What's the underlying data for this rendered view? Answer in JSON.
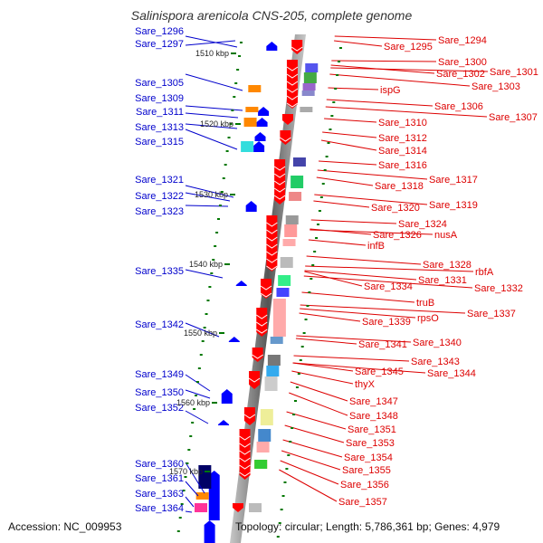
{
  "title": "Salinispora arenicola CNS-205, complete genome",
  "footer": {
    "accession": "Accession: NC_009953",
    "topology": "Topology: circular; Length: 5,786,361 bp; Genes: 4,979"
  },
  "colors": {
    "left_label": "#0000cc",
    "right_label": "#dd0000",
    "forward_gene": "#0000ff",
    "reverse_gene": "#ff0000",
    "tick": "#007700"
  },
  "scale_labels": [
    "1510 kbp",
    "1520 kbp",
    "1530 kbp",
    "1540 kbp",
    "1550 kbp",
    "1560 kbp",
    "1570 kbp"
  ],
  "left_labels": [
    "Sare_1296",
    "Sare_1297",
    "Sare_1305",
    "Sare_1309",
    "Sare_1311",
    "Sare_1313",
    "Sare_1315",
    "Sare_1321",
    "Sare_1322",
    "Sare_1323",
    "Sare_1335",
    "Sare_1342",
    "Sare_1349",
    "Sare_1350",
    "Sare_1352",
    "Sare_1360",
    "Sare_1361",
    "Sare_1363",
    "Sare_1364"
  ],
  "right_labels": [
    "Sare_1294",
    "Sare_1295",
    "Sare_1300",
    "Sare_1302",
    "Sare_1301",
    "Sare_1303",
    "ispG",
    "Sare_1306",
    "Sare_1307",
    "Sare_1310",
    "Sare_1312",
    "Sare_1314",
    "Sare_1316",
    "Sare_1317",
    "Sare_1318",
    "Sare_1319",
    "Sare_1320",
    "Sare_1324",
    "Sare_1326",
    "nusA",
    "infB",
    "Sare_1328",
    "rbfA",
    "Sare_1331",
    "Sare_1334",
    "Sare_1332",
    "truB",
    "Sare_1337",
    "rpsO",
    "Sare_1339",
    "Sare_1340",
    "Sare_1341",
    "Sare_1343",
    "Sare_1345",
    "Sare_1344",
    "thyX",
    "Sare_1347",
    "Sare_1348",
    "Sare_1351",
    "Sare_1353",
    "Sare_1354",
    "Sare_1355",
    "Sare_1356",
    "Sare_1357"
  ]
}
